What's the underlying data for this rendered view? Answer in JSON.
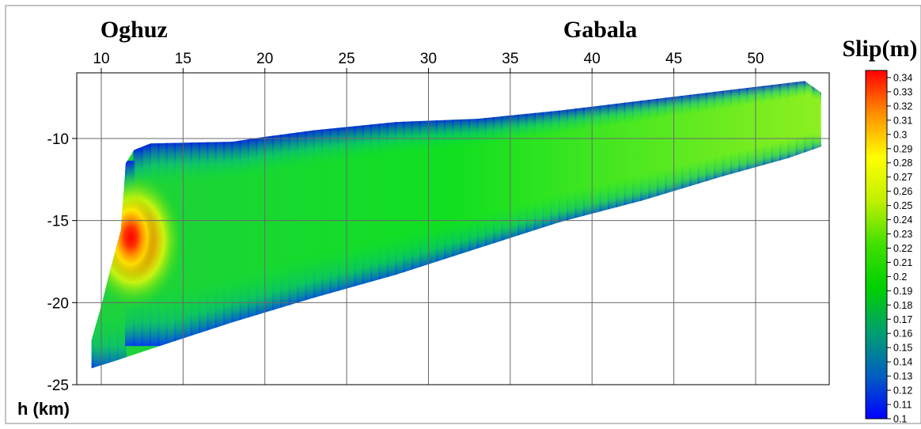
{
  "chart_data": {
    "type": "heatmap",
    "locations": [
      {
        "label": "Oghuz",
        "x": 12
      },
      {
        "label": "Gabala",
        "x": 40.5
      }
    ],
    "xlabel": "",
    "ylabel": "h (km)",
    "x_ticks": [
      10,
      15,
      20,
      25,
      30,
      35,
      40,
      45,
      50
    ],
    "y_ticks": [
      -10,
      -15,
      -20,
      -25
    ],
    "xlim": [
      8.5,
      54.5
    ],
    "ylim": [
      -25,
      -6
    ],
    "grid": true,
    "colorbar": {
      "title": "Slip(m)",
      "min": 0.1,
      "max": 0.345,
      "ticks": [
        "0.34",
        "0.33",
        "0.32",
        "0.31",
        "0.3",
        "0.29",
        "0.28",
        "0.27",
        "0.26",
        "0.25",
        "0.24",
        "0.23",
        "0.22",
        "0.21",
        "0.2",
        "0.19",
        "0.18",
        "0.17",
        "0.16",
        "0.15",
        "0.14",
        "0.13",
        "0.12",
        "0.11",
        "0.1"
      ],
      "colors": [
        "#0000ff",
        "#0060c0",
        "#00a070",
        "#00d000",
        "#40e000",
        "#c0f000",
        "#ffff00",
        "#ff9000",
        "#ff0000"
      ]
    },
    "slip_region": {
      "top_edge": [
        [
          11.5,
          -11.5
        ],
        [
          12,
          -10.7
        ],
        [
          13,
          -10.3
        ],
        [
          18,
          -10.2
        ],
        [
          20,
          -9.9
        ],
        [
          23,
          -9.5
        ],
        [
          28,
          -9.0
        ],
        [
          33,
          -8.8
        ],
        [
          38,
          -8.3
        ],
        [
          43,
          -7.7
        ],
        [
          48,
          -7.1
        ],
        [
          53,
          -6.5
        ],
        [
          54,
          -7.2
        ]
      ],
      "bottom_edge": [
        [
          54,
          -10.5
        ],
        [
          52,
          -11.2
        ],
        [
          48,
          -12.3
        ],
        [
          43,
          -13.8
        ],
        [
          38,
          -15.1
        ],
        [
          33,
          -16.7
        ],
        [
          28,
          -18.3
        ],
        [
          23,
          -19.7
        ],
        [
          18,
          -21.2
        ],
        [
          14,
          -22.5
        ],
        [
          11,
          -23.5
        ],
        [
          9.4,
          -24.0
        ],
        [
          9.4,
          -22.3
        ],
        [
          10.0,
          -20.2
        ],
        [
          10.5,
          -18.2
        ],
        [
          11.2,
          -15.6
        ]
      ],
      "slip_peak": {
        "x": 11.8,
        "y": -16.2,
        "value": 0.345
      },
      "slip_background": 0.2
    }
  }
}
